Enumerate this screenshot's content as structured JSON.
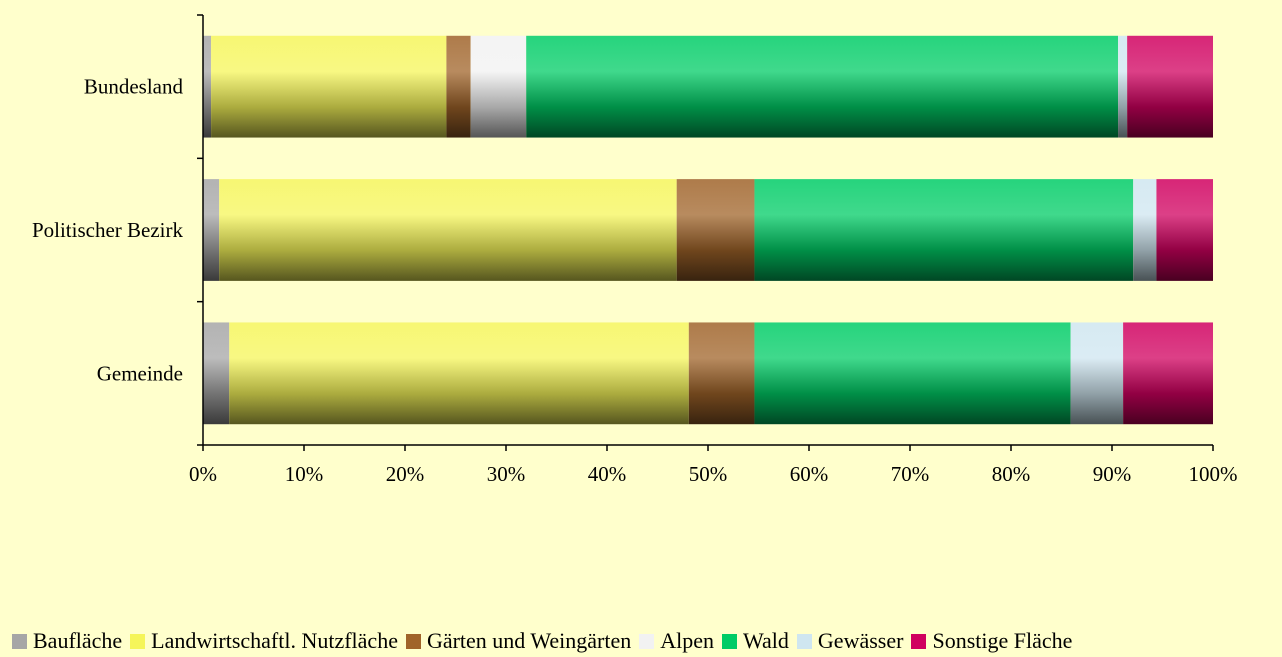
{
  "chart_data": {
    "type": "bar",
    "orientation": "horizontal",
    "stacked": "percent",
    "categories": [
      "Bundesland",
      "Politischer Bezirk",
      "Gemeinde"
    ],
    "series": [
      {
        "name": "Baufläche",
        "color": "#A6A6A6",
        "values": [
          0.8,
          1.6,
          2.6
        ]
      },
      {
        "name": "Landwirtschaftl. Nutzfläche",
        "color": "#F5F55A",
        "values": [
          23.3,
          45.3,
          45.5
        ]
      },
      {
        "name": "Gärten und Weingärten",
        "color": "#A0642A",
        "values": [
          2.4,
          7.7,
          6.5
        ]
      },
      {
        "name": "Alpen",
        "color": "#F2F2F2",
        "values": [
          5.5,
          0.0,
          0.0
        ]
      },
      {
        "name": "Wald",
        "color": "#00CC66",
        "values": [
          58.6,
          37.5,
          31.3
        ]
      },
      {
        "name": "Gewässer",
        "color": "#CFE6F0",
        "values": [
          0.9,
          2.3,
          5.2
        ]
      },
      {
        "name": "Sonstige Fläche",
        "color": "#D0005F",
        "values": [
          8.5,
          5.6,
          8.9
        ]
      }
    ],
    "xticks": [
      "0%",
      "10%",
      "20%",
      "30%",
      "40%",
      "50%",
      "60%",
      "70%",
      "80%",
      "90%",
      "100%"
    ],
    "xlim": [
      0,
      100
    ],
    "grid": false,
    "legend_position": "bottom"
  }
}
